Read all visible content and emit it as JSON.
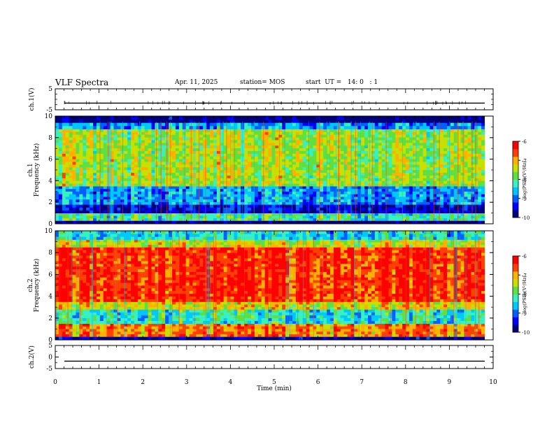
{
  "header": {
    "title": "VLF Spectra",
    "date": "Apr. 11, 2025",
    "station": "station= MOS",
    "start": "start  UT =   14: 0   : 1"
  },
  "colors": {
    "cmap": [
      "#00007f",
      "#0000ff",
      "#0060ff",
      "#00c8ff",
      "#38f0c0",
      "#60e040",
      "#c8e000",
      "#ffb000",
      "#ff4000",
      "#ff0000"
    ],
    "trace": "#000000"
  },
  "chart_data": [
    {
      "type": "line",
      "ylabel": "ch.1(V)",
      "ylim": [
        -5,
        5
      ],
      "yticks": [
        "5",
        "-5"
      ],
      "level": -1.8,
      "xlim": [
        0,
        10
      ]
    },
    {
      "type": "heatmap",
      "ylabel": "Frequency (kHz)",
      "ylabel_prefix": "ch.1",
      "ylim": [
        0,
        10
      ],
      "yticks": [
        "0",
        "2",
        "4",
        "6",
        "8",
        "10"
      ],
      "colorbar": {
        "label": "log(PSD)(V²/Hz)",
        "min": -10,
        "max": -6,
        "ticks": [
          "-6",
          "-7",
          "-8",
          "-9",
          "-10"
        ]
      },
      "bands": [
        {
          "from": 0.0,
          "to": 0.3,
          "log_psd": -10
        },
        {
          "from": 0.3,
          "to": 1.0,
          "log_psd": -8.1
        },
        {
          "from": 1.0,
          "to": 1.8,
          "log_psd": -9.6
        },
        {
          "from": 1.8,
          "to": 3.5,
          "log_psd": -8.8
        },
        {
          "from": 3.5,
          "to": 8.8,
          "log_psd": -7.6
        },
        {
          "from": 8.8,
          "to": 9.4,
          "log_psd": -8.8
        },
        {
          "from": 9.4,
          "to": 10.0,
          "log_psd": -10
        }
      ]
    },
    {
      "type": "heatmap",
      "ylabel": "Frequency (kHz)",
      "ylabel_prefix": "ch.2",
      "ylim": [
        0,
        10
      ],
      "yticks": [
        "0",
        "2",
        "4",
        "6",
        "8",
        "10"
      ],
      "colorbar": {
        "label": "log(PSD)(V²/Hz)",
        "min": -10,
        "max": -6,
        "ticks": [
          "-6",
          "-7",
          "-8",
          "-9",
          "-10"
        ]
      },
      "bands": [
        {
          "from": 0.0,
          "to": 0.3,
          "log_psd": -9.8
        },
        {
          "from": 0.3,
          "to": 1.5,
          "log_psd": -6.8
        },
        {
          "from": 1.5,
          "to": 2.8,
          "log_psd": -8.3
        },
        {
          "from": 2.8,
          "to": 3.5,
          "log_psd": -7.3
        },
        {
          "from": 3.5,
          "to": 8.5,
          "log_psd": -6.4
        },
        {
          "from": 8.5,
          "to": 9.2,
          "log_psd": -7.4
        },
        {
          "from": 9.2,
          "to": 10.0,
          "log_psd": -8.4
        }
      ]
    },
    {
      "type": "line",
      "ylabel": "ch.2(V)",
      "ylim": [
        -5,
        5
      ],
      "yticks": [
        "5",
        "0",
        "-5"
      ],
      "level": -1.8,
      "xlim": [
        0,
        10
      ]
    }
  ],
  "xaxis": {
    "label": "Time (min)",
    "xlim": [
      0,
      10
    ],
    "ticks": [
      "0",
      "1",
      "2",
      "3",
      "4",
      "5",
      "6",
      "7",
      "8",
      "9",
      "10"
    ]
  }
}
